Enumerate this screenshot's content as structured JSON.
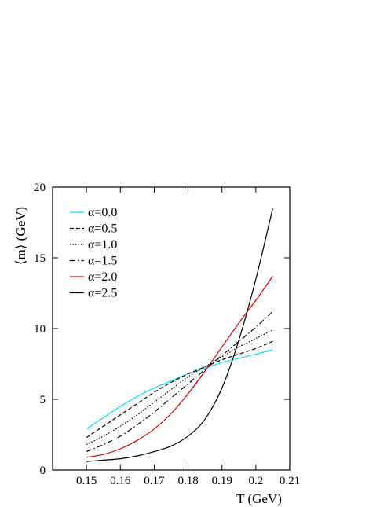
{
  "chart_data": {
    "type": "line",
    "xlabel": "T (GeV)",
    "ylabel": "⟨m⟩ (GeV)",
    "xlim": [
      0.14,
      0.21
    ],
    "ylim": [
      0,
      20
    ],
    "xticks": [
      0.15,
      0.16,
      0.17,
      0.18,
      0.19,
      0.2,
      0.21
    ],
    "xtick_labels": [
      "0.15",
      "0.16",
      "0.17",
      "0.18",
      "0.19",
      "0.2",
      "0.21"
    ],
    "yticks": [
      0,
      5,
      10,
      15,
      20
    ],
    "ytick_labels": [
      "0",
      "5",
      "10",
      "15",
      "20"
    ],
    "grid": false,
    "legend_position": "top-left",
    "x": [
      0.15,
      0.155,
      0.16,
      0.165,
      0.17,
      0.175,
      0.18,
      0.185,
      0.19,
      0.195,
      0.2,
      0.205
    ],
    "series": [
      {
        "name": "α=0.0",
        "color": "#00e5e5",
        "dash": "solid",
        "values": [
          2.9,
          3.7,
          4.5,
          5.2,
          5.8,
          6.3,
          6.8,
          7.2,
          7.6,
          7.9,
          8.2,
          8.5
        ]
      },
      {
        "name": "α=0.5",
        "color": "#000000",
        "dash": "dashed",
        "values": [
          2.3,
          3.1,
          3.9,
          4.7,
          5.5,
          6.2,
          6.8,
          7.3,
          7.8,
          8.2,
          8.6,
          9.1
        ]
      },
      {
        "name": "α=1.0",
        "color": "#000000",
        "dash": "dotted",
        "values": [
          1.8,
          2.4,
          3.1,
          3.9,
          4.8,
          5.7,
          6.6,
          7.3,
          8.0,
          8.7,
          9.3,
          9.9
        ]
      },
      {
        "name": "α=1.5",
        "color": "#000000",
        "dash": "dashdot",
        "values": [
          1.3,
          1.8,
          2.4,
          3.2,
          4.1,
          5.1,
          6.1,
          7.1,
          8.1,
          9.1,
          10.1,
          11.2
        ]
      },
      {
        "name": "α=2.0",
        "color": "#dd0000",
        "dash": "solid",
        "values": [
          0.9,
          1.1,
          1.5,
          2.1,
          2.9,
          4.0,
          5.4,
          7.0,
          8.7,
          10.4,
          12.0,
          13.7
        ]
      },
      {
        "name": "α=2.5",
        "color": "#000000",
        "dash": "solid",
        "values": [
          0.6,
          0.7,
          0.8,
          1.0,
          1.3,
          1.7,
          2.4,
          3.6,
          5.8,
          9.2,
          13.5,
          18.5
        ]
      }
    ]
  }
}
